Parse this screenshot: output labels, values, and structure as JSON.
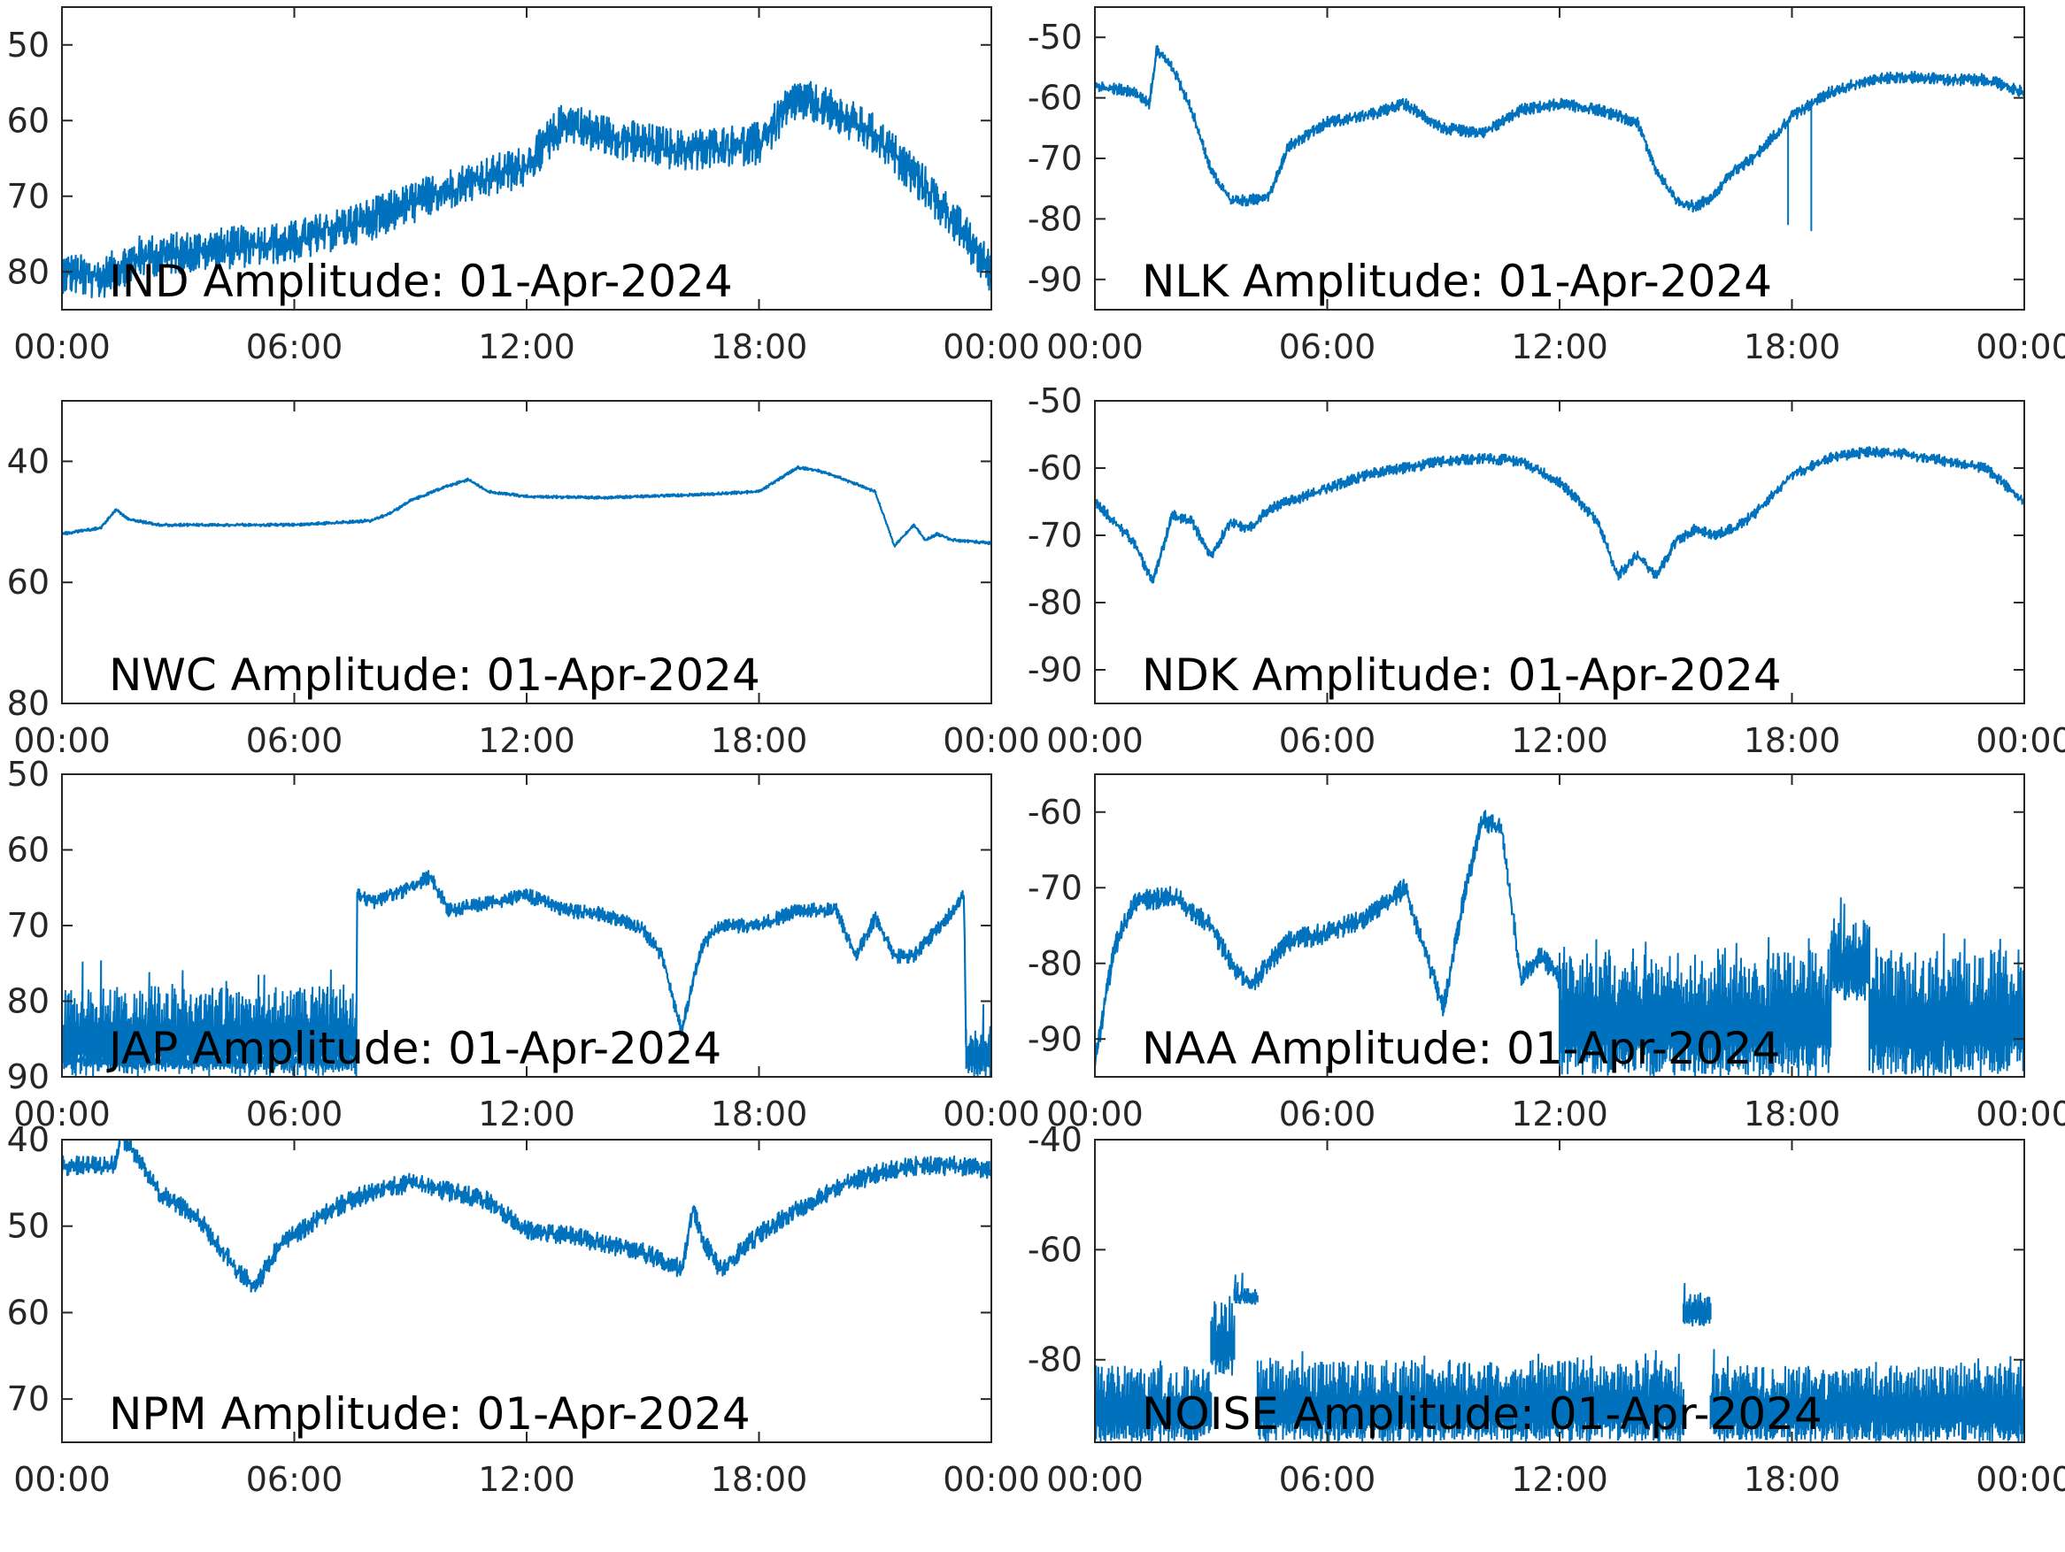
{
  "figure": {
    "line_color": "#0072BD",
    "axis_color": "#262626"
  },
  "chart_data": [
    {
      "type": "line",
      "title": "IND Amplitude: 01-Apr-2024",
      "xlabel": "",
      "ylabel": "",
      "xlim": [
        0,
        24
      ],
      "ylim": [
        -85,
        -45
      ],
      "x_ticks": [
        "00:00",
        "06:00",
        "12:00",
        "18:00",
        "00:00"
      ],
      "y_ticks": [
        -50,
        -60,
        -70,
        -80
      ],
      "y_tick_labels": [
        "50",
        "60",
        "70",
        "80"
      ],
      "grid": false,
      "noise": 3.5,
      "series": [
        {
          "x": [
            0,
            1,
            1.3,
            2,
            4,
            6,
            8,
            10,
            12,
            13,
            14,
            16,
            18,
            19,
            20,
            21,
            22,
            23,
            24
          ],
          "y": [
            -80,
            -81,
            -80,
            -78,
            -77,
            -76,
            -73,
            -69,
            -66,
            -60,
            -62,
            -64,
            -63,
            -57,
            -59,
            -62,
            -67,
            -73,
            -80
          ]
        }
      ]
    },
    {
      "type": "line",
      "title": "NLK Amplitude: 01-Apr-2024",
      "xlabel": "",
      "ylabel": "",
      "xlim": [
        0,
        24
      ],
      "ylim": [
        -95,
        -45
      ],
      "x_ticks": [
        "00:00",
        "06:00",
        "12:00",
        "18:00",
        "00:00"
      ],
      "y_ticks": [
        -50,
        -60,
        -70,
        -80,
        -90
      ],
      "y_tick_labels": [
        "-50",
        "-60",
        "-70",
        "-80",
        "-90"
      ],
      "grid": false,
      "noise": 1.2,
      "series": [
        {
          "x": [
            0,
            1,
            1.4,
            1.6,
            2,
            2.5,
            3,
            3.5,
            4,
            4.5,
            5,
            6,
            7,
            8,
            9,
            10,
            11,
            12,
            13,
            14,
            14.5,
            15,
            15.5,
            16,
            16.5,
            17,
            18,
            19,
            20,
            21,
            22,
            23,
            24
          ],
          "y": [
            -58,
            -59,
            -61,
            -52,
            -55,
            -62,
            -72,
            -77,
            -77,
            -76,
            -68,
            -64,
            -63,
            -61,
            -65,
            -66,
            -62,
            -61,
            -62,
            -64,
            -72,
            -77,
            -78,
            -76,
            -72,
            -70,
            -63,
            -59,
            -57,
            -56.5,
            -57,
            -57,
            -59
          ]
        }
      ],
      "spikes": [
        {
          "x": 17.9,
          "y": -81
        },
        {
          "x": 18.5,
          "y": -82
        }
      ]
    },
    {
      "type": "line",
      "title": "NWC Amplitude: 01-Apr-2024",
      "xlabel": "",
      "ylabel": "",
      "xlim": [
        0,
        24
      ],
      "ylim": [
        -80,
        -30
      ],
      "x_ticks": [
        "00:00",
        "06:00",
        "12:00",
        "18:00",
        "00:00"
      ],
      "y_ticks": [
        -40,
        -60,
        -80
      ],
      "y_tick_labels": [
        "40",
        "60",
        "80"
      ],
      "grid": false,
      "noise": 0.3,
      "series": [
        {
          "x": [
            0,
            1,
            1.4,
            1.7,
            2.5,
            4,
            6,
            8,
            8.5,
            9,
            10,
            10.5,
            11,
            12,
            14,
            16,
            18,
            19,
            19.5,
            20,
            21,
            21.5,
            22,
            22.3,
            22.6,
            23,
            24
          ],
          "y": [
            -52,
            -51,
            -48,
            -49.5,
            -50.5,
            -50.5,
            -50.5,
            -49.8,
            -48.5,
            -46.5,
            -44,
            -43,
            -45,
            -45.8,
            -46,
            -45.6,
            -45,
            -41,
            -41.5,
            -42.5,
            -45,
            -54,
            -50.5,
            -53,
            -52,
            -53,
            -53.5
          ]
        }
      ]
    },
    {
      "type": "line",
      "title": "NDK Amplitude: 01-Apr-2024",
      "xlabel": "",
      "ylabel": "",
      "xlim": [
        0,
        24
      ],
      "ylim": [
        -95,
        -50
      ],
      "x_ticks": [
        "00:00",
        "06:00",
        "12:00",
        "18:00",
        "00:00"
      ],
      "y_ticks": [
        -50,
        -60,
        -70,
        -80,
        -90
      ],
      "y_tick_labels": [
        "-50",
        "-60",
        "-70",
        "-80",
        "-90"
      ],
      "grid": false,
      "noise": 1.0,
      "series": [
        {
          "x": [
            0,
            1,
            1.5,
            2,
            2.5,
            3,
            3.5,
            4,
            4.5,
            5,
            6,
            7,
            8,
            9,
            10,
            11,
            12,
            13,
            13.5,
            14,
            14.5,
            15,
            15.5,
            16,
            16.5,
            17,
            18,
            19,
            20,
            21,
            22,
            23,
            24
          ],
          "y": [
            -65,
            -71,
            -77,
            -67,
            -68,
            -73,
            -68,
            -69,
            -66,
            -65,
            -63,
            -61,
            -60,
            -59,
            -58.5,
            -59,
            -62,
            -68,
            -76,
            -73,
            -76,
            -71,
            -69,
            -70,
            -69,
            -67,
            -61,
            -58.5,
            -57.5,
            -58,
            -59,
            -60,
            -65
          ]
        }
      ]
    },
    {
      "type": "line",
      "title": "JAP Amplitude: 01-Apr-2024",
      "xlabel": "",
      "ylabel": "",
      "xlim": [
        0,
        24
      ],
      "ylim": [
        -90,
        -50
      ],
      "x_ticks": [
        "00:00",
        "06:00",
        "12:00",
        "18:00",
        "00:00"
      ],
      "y_ticks": [
        -50,
        -60,
        -70,
        -80,
        -90
      ],
      "y_tick_labels": [
        "50",
        "60",
        "70",
        "80",
        "90"
      ],
      "grid": false,
      "noise": 1.2,
      "series": [
        {
          "x": [
            0,
            7.6,
            7.62,
            8,
            9,
            9.5,
            10,
            11,
            12,
            13,
            14,
            15,
            15.5,
            16,
            16.5,
            17,
            18,
            19,
            20,
            20.5,
            21,
            21.5,
            22,
            23,
            23.3,
            23.35,
            24
          ],
          "y": [
            -88,
            -88,
            -66,
            -67,
            -65,
            -63.5,
            -68,
            -67,
            -66,
            -68,
            -68.5,
            -70.5,
            -74,
            -84,
            -73,
            -70,
            -70,
            -68,
            -68,
            -74,
            -69,
            -74,
            -74,
            -68,
            -66,
            -88,
            -88
          ]
        }
      ],
      "noise_bands": [
        {
          "x0": 0,
          "x1": 7.6,
          "y0": -90,
          "y1": -78
        },
        {
          "x0": 23.35,
          "x1": 24,
          "y0": -90,
          "y1": -83
        }
      ]
    },
    {
      "type": "line",
      "title": "NAA Amplitude: 01-Apr-2024",
      "xlabel": "",
      "ylabel": "",
      "xlim": [
        0,
        24
      ],
      "ylim": [
        -95,
        -55
      ],
      "x_ticks": [
        "00:00",
        "06:00",
        "12:00",
        "18:00",
        "00:00"
      ],
      "y_ticks": [
        -60,
        -70,
        -80,
        -90
      ],
      "y_tick_labels": [
        "-60",
        "-70",
        "-80",
        "-90"
      ],
      "grid": false,
      "noise": 1.8,
      "series": [
        {
          "x": [
            0,
            0.5,
            1,
            2,
            3,
            3.5,
            4,
            5,
            6,
            7,
            8,
            8.5,
            9,
            9.5,
            10,
            10.5,
            11,
            11.5,
            12
          ],
          "y": [
            -93,
            -78,
            -72,
            -71,
            -75,
            -80,
            -83,
            -77,
            -76,
            -74,
            -70,
            -78,
            -86,
            -72,
            -61,
            -62,
            -82,
            -79,
            -82
          ]
        }
      ],
      "noise_bands": [
        {
          "x0": 12,
          "x1": 19,
          "y0": -95,
          "y1": -78
        },
        {
          "x0": 19,
          "x1": 20,
          "y0": -85,
          "y1": -74
        },
        {
          "x0": 20,
          "x1": 24,
          "y0": -95,
          "y1": -78
        }
      ]
    },
    {
      "type": "line",
      "title": "NPM Amplitude: 01-Apr-2024",
      "xlabel": "",
      "ylabel": "",
      "xlim": [
        0,
        24
      ],
      "ylim": [
        -75,
        -40
      ],
      "x_ticks": [
        "00:00",
        "06:00",
        "12:00",
        "18:00",
        "00:00"
      ],
      "y_ticks": [
        -40,
        -50,
        -60,
        -70
      ],
      "y_tick_labels": [
        "40",
        "50",
        "60",
        "70"
      ],
      "grid": false,
      "noise": 1.4,
      "series": [
        {
          "x": [
            0,
            1.4,
            1.5,
            1.8,
            2.5,
            3.5,
            4.5,
            5,
            5.5,
            6,
            7,
            8,
            9,
            10,
            11,
            12,
            13,
            14,
            15,
            16,
            16.3,
            16.6,
            17,
            17.5,
            18,
            19,
            20,
            21,
            22,
            23,
            24
          ],
          "y": [
            -43,
            -43,
            -39.5,
            -41,
            -46,
            -49,
            -55,
            -57,
            -53,
            -51,
            -48,
            -46,
            -45,
            -46,
            -47,
            -50.5,
            -51,
            -52,
            -53,
            -55,
            -48,
            -52,
            -55,
            -53,
            -51,
            -48,
            -45.5,
            -44,
            -43,
            -43,
            -43.5
          ]
        }
      ]
    },
    {
      "type": "line",
      "title": "NOISE Amplitude: 01-Apr-2024",
      "xlabel": "",
      "ylabel": "",
      "xlim": [
        0,
        24
      ],
      "ylim": [
        -95,
        -40
      ],
      "x_ticks": [
        "00:00",
        "06:00",
        "12:00",
        "18:00",
        "00:00"
      ],
      "y_ticks": [
        -40,
        -60,
        -80
      ],
      "y_tick_labels": [
        "-40",
        "-60",
        "-80"
      ],
      "grid": false,
      "noise": 1.5,
      "series": [],
      "noise_bands": [
        {
          "x0": 0,
          "x1": 3.0,
          "y0": -95,
          "y1": -81
        },
        {
          "x0": 3.0,
          "x1": 3.6,
          "y0": -83,
          "y1": -69
        },
        {
          "x0": 3.6,
          "x1": 4.2,
          "y0": -70,
          "y1": -67
        },
        {
          "x0": 4.2,
          "x1": 15.2,
          "y0": -95,
          "y1": -80
        },
        {
          "x0": 15.2,
          "x1": 15.9,
          "y0": -74,
          "y1": -68
        },
        {
          "x0": 15.9,
          "x1": 24,
          "y0": -95,
          "y1": -81
        }
      ]
    }
  ]
}
